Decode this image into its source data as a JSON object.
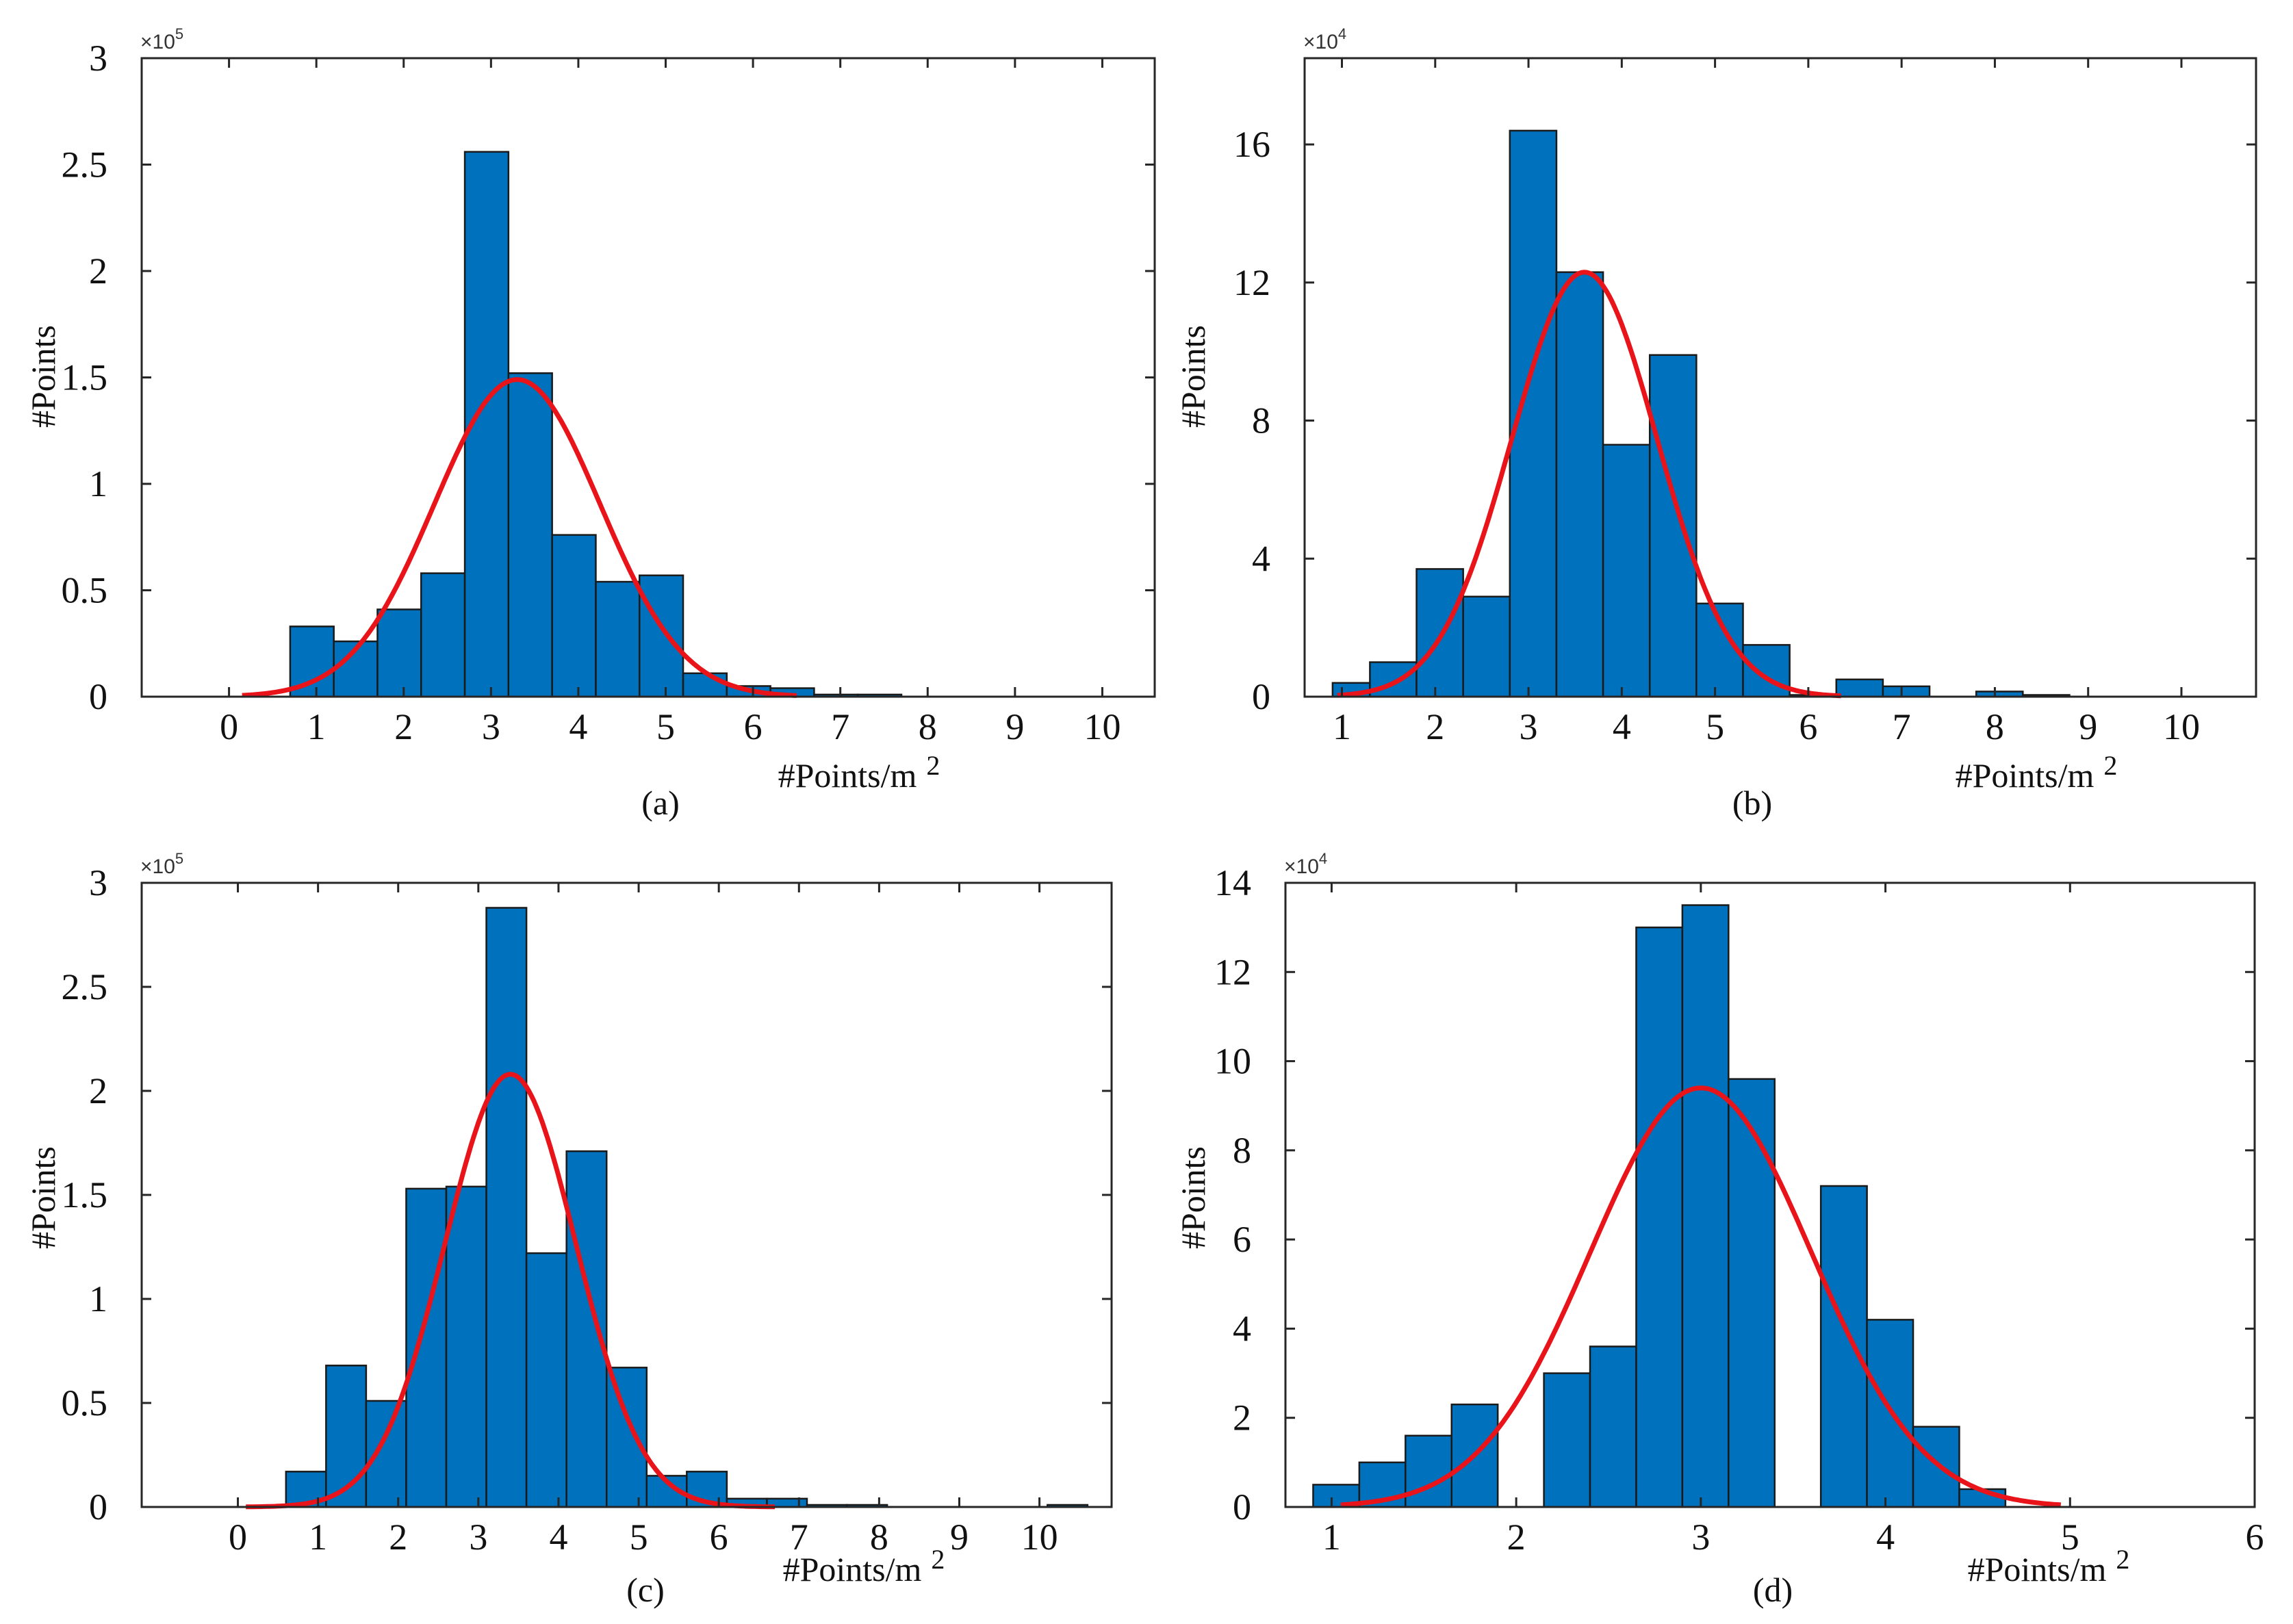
{
  "chart_data": [
    {
      "id": "a",
      "type": "bar",
      "caption": "(a)",
      "xlabel": "#Points/m",
      "xlabel_sup": "2",
      "ylabel": "#Points",
      "exponent_label": "×10",
      "exponent_power": "5",
      "xlim": [
        -1.0,
        10.6
      ],
      "ylim": [
        0,
        3
      ],
      "xticks": [
        0,
        1,
        2,
        3,
        4,
        5,
        6,
        7,
        8,
        9,
        10
      ],
      "xtick_labels": [
        "0",
        "1",
        "2",
        "3",
        "4",
        "5",
        "6",
        "7",
        "8",
        "9",
        "10"
      ],
      "yticks": [
        0,
        0.5,
        1,
        1.5,
        2,
        2.5,
        3
      ],
      "ytick_labels": [
        "0",
        "0.5",
        "1",
        "1.5",
        "2",
        "2.5",
        "3"
      ],
      "bins": [
        {
          "x0": 0.7,
          "x1": 1.2,
          "value": 0.33
        },
        {
          "x0": 1.2,
          "x1": 1.7,
          "value": 0.26
        },
        {
          "x0": 1.7,
          "x1": 2.2,
          "value": 0.41
        },
        {
          "x0": 2.2,
          "x1": 2.7,
          "value": 0.58
        },
        {
          "x0": 2.7,
          "x1": 3.2,
          "value": 2.56
        },
        {
          "x0": 3.2,
          "x1": 3.7,
          "value": 1.52
        },
        {
          "x0": 3.7,
          "x1": 4.2,
          "value": 0.76
        },
        {
          "x0": 4.2,
          "x1": 4.7,
          "value": 0.54
        },
        {
          "x0": 4.7,
          "x1": 5.2,
          "value": 0.57
        },
        {
          "x0": 5.2,
          "x1": 5.7,
          "value": 0.11
        },
        {
          "x0": 5.7,
          "x1": 6.2,
          "value": 0.05
        },
        {
          "x0": 6.2,
          "x1": 6.7,
          "value": 0.04
        },
        {
          "x0": 6.7,
          "x1": 7.2,
          "value": 0.01
        },
        {
          "x0": 7.2,
          "x1": 7.7,
          "value": 0.01
        }
      ],
      "fit": {
        "mean": 3.3,
        "sigma": 0.95,
        "peak": 1.49,
        "from": 0.15,
        "to": 6.5
      },
      "bar_color": "#0072BD",
      "fit_color": "#E8141A"
    },
    {
      "id": "b",
      "type": "bar",
      "caption": "(b)",
      "xlabel": "#Points/m",
      "xlabel_sup": "2",
      "ylabel": "#Points",
      "exponent_label": "×10",
      "exponent_power": "4",
      "xlim": [
        0.6,
        10.8
      ],
      "ylim": [
        0,
        18.5
      ],
      "xticks": [
        1,
        2,
        3,
        4,
        5,
        6,
        7,
        8,
        9,
        10
      ],
      "xtick_labels": [
        "1",
        "2",
        "3",
        "4",
        "5",
        "6",
        "7",
        "8",
        "9",
        "10"
      ],
      "yticks": [
        0,
        4,
        8,
        12,
        16
      ],
      "ytick_labels": [
        "0",
        "4",
        "8",
        "12",
        "16"
      ],
      "bins": [
        {
          "x0": 0.9,
          "x1": 1.3,
          "value": 0.4
        },
        {
          "x0": 1.3,
          "x1": 1.8,
          "value": 1.0
        },
        {
          "x0": 1.8,
          "x1": 2.3,
          "value": 3.7
        },
        {
          "x0": 2.3,
          "x1": 2.8,
          "value": 2.9
        },
        {
          "x0": 2.8,
          "x1": 3.3,
          "value": 16.4
        },
        {
          "x0": 3.3,
          "x1": 3.8,
          "value": 12.3
        },
        {
          "x0": 3.8,
          "x1": 4.3,
          "value": 7.3
        },
        {
          "x0": 4.3,
          "x1": 4.8,
          "value": 9.9
        },
        {
          "x0": 4.8,
          "x1": 5.3,
          "value": 2.7
        },
        {
          "x0": 5.3,
          "x1": 5.8,
          "value": 1.5
        },
        {
          "x0": 5.8,
          "x1": 6.3,
          "value": 0.05
        },
        {
          "x0": 6.3,
          "x1": 6.8,
          "value": 0.5
        },
        {
          "x0": 6.8,
          "x1": 7.3,
          "value": 0.3
        },
        {
          "x0": 7.8,
          "x1": 8.3,
          "value": 0.15
        },
        {
          "x0": 8.3,
          "x1": 8.8,
          "value": 0.05
        }
      ],
      "fit": {
        "mean": 3.6,
        "sigma": 0.78,
        "peak": 12.3,
        "from": 0.95,
        "to": 6.35
      },
      "bar_color": "#0072BD",
      "fit_color": "#E8141A"
    },
    {
      "id": "c",
      "type": "bar",
      "caption": "(c)",
      "xlabel": "#Points/m",
      "xlabel_sup": "2",
      "ylabel": "#Points",
      "exponent_label": "×10",
      "exponent_power": "5",
      "xlim": [
        -1.2,
        10.9
      ],
      "ylim": [
        0,
        3
      ],
      "xticks": [
        0,
        1,
        2,
        3,
        4,
        5,
        6,
        7,
        8,
        9,
        10
      ],
      "xtick_labels": [
        "0",
        "1",
        "2",
        "3",
        "4",
        "5",
        "6",
        "7",
        "8",
        "9",
        "10"
      ],
      "yticks": [
        0,
        0.5,
        1,
        1.5,
        2,
        2.5,
        3
      ],
      "ytick_labels": [
        "0",
        "0.5",
        "1",
        "1.5",
        "2",
        "2.5",
        "3"
      ],
      "bins": [
        {
          "x0": 0.6,
          "x1": 1.1,
          "value": 0.17
        },
        {
          "x0": 1.1,
          "x1": 1.6,
          "value": 0.68
        },
        {
          "x0": 1.6,
          "x1": 2.1,
          "value": 0.51
        },
        {
          "x0": 2.1,
          "x1": 2.6,
          "value": 1.53
        },
        {
          "x0": 2.6,
          "x1": 3.1,
          "value": 1.54
        },
        {
          "x0": 3.1,
          "x1": 3.6,
          "value": 2.88
        },
        {
          "x0": 3.6,
          "x1": 4.1,
          "value": 1.22
        },
        {
          "x0": 4.1,
          "x1": 4.6,
          "value": 1.71
        },
        {
          "x0": 4.6,
          "x1": 5.1,
          "value": 0.67
        },
        {
          "x0": 5.1,
          "x1": 5.6,
          "value": 0.15
        },
        {
          "x0": 5.6,
          "x1": 6.1,
          "value": 0.17
        },
        {
          "x0": 6.1,
          "x1": 6.6,
          "value": 0.04
        },
        {
          "x0": 6.6,
          "x1": 7.1,
          "value": 0.04
        },
        {
          "x0": 7.1,
          "x1": 7.6,
          "value": 0.01
        },
        {
          "x0": 7.6,
          "x1": 8.1,
          "value": 0.01
        },
        {
          "x0": 10.1,
          "x1": 10.6,
          "value": 0.01
        }
      ],
      "fit": {
        "mean": 3.4,
        "sigma": 0.82,
        "peak": 2.08,
        "from": 0.1,
        "to": 6.7
      },
      "bar_color": "#0072BD",
      "fit_color": "#E8141A"
    },
    {
      "id": "d",
      "type": "bar",
      "caption": "(d)",
      "xlabel": "#Points/m",
      "xlabel_sup": "2",
      "ylabel": "#Points",
      "exponent_label": "×10",
      "exponent_power": "4",
      "xlim": [
        0.75,
        6.0
      ],
      "ylim": [
        0,
        14
      ],
      "xticks": [
        1,
        2,
        3,
        4,
        5,
        6
      ],
      "xtick_labels": [
        "1",
        "2",
        "3",
        "4",
        "5",
        "6"
      ],
      "yticks": [
        0,
        2,
        4,
        6,
        8,
        10,
        12,
        14
      ],
      "ytick_labels": [
        "0",
        "2",
        "4",
        "6",
        "8",
        "10",
        "12",
        "14"
      ],
      "bins": [
        {
          "x0": 0.9,
          "x1": 1.15,
          "value": 0.5
        },
        {
          "x0": 1.15,
          "x1": 1.4,
          "value": 1.0
        },
        {
          "x0": 1.4,
          "x1": 1.65,
          "value": 1.6
        },
        {
          "x0": 1.65,
          "x1": 1.9,
          "value": 2.3
        },
        {
          "x0": 2.15,
          "x1": 2.4,
          "value": 3.0
        },
        {
          "x0": 2.4,
          "x1": 2.65,
          "value": 3.6
        },
        {
          "x0": 2.65,
          "x1": 2.9,
          "value": 13.0
        },
        {
          "x0": 2.9,
          "x1": 3.15,
          "value": 13.5
        },
        {
          "x0": 3.15,
          "x1": 3.4,
          "value": 9.6
        },
        {
          "x0": 3.65,
          "x1": 3.9,
          "value": 7.2
        },
        {
          "x0": 3.9,
          "x1": 4.15,
          "value": 4.2
        },
        {
          "x0": 4.15,
          "x1": 4.4,
          "value": 1.8
        },
        {
          "x0": 4.4,
          "x1": 4.65,
          "value": 0.4
        }
      ],
      "fit": {
        "mean": 3.0,
        "sigma": 0.6,
        "peak": 9.4,
        "from": 1.05,
        "to": 4.95
      },
      "bar_color": "#0072BD",
      "fit_color": "#E8141A"
    }
  ]
}
